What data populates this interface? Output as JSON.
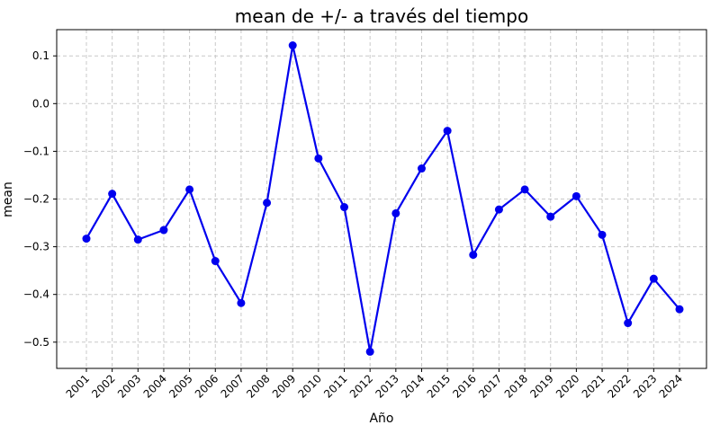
{
  "chart_data": {
    "type": "line",
    "title": "mean de +/- a través del tiempo",
    "xlabel": "Año",
    "ylabel": "mean",
    "categories": [
      "2001",
      "2002",
      "2003",
      "2004",
      "2005",
      "2006",
      "2007",
      "2008",
      "2009",
      "2010",
      "2011",
      "2012",
      "2013",
      "2014",
      "2015",
      "2016",
      "2017",
      "2018",
      "2019",
      "2020",
      "2021",
      "2022",
      "2023",
      "2024"
    ],
    "series": [
      {
        "values": [
          -0.283,
          -0.189,
          -0.285,
          -0.265,
          -0.18,
          -0.33,
          -0.418,
          -0.208,
          0.122,
          -0.115,
          -0.217,
          -0.52,
          -0.23,
          -0.136,
          -0.057,
          -0.317,
          -0.222,
          -0.18,
          -0.237,
          -0.194,
          -0.275,
          -0.46,
          -0.367,
          -0.431
        ],
        "color": "#0000ee"
      }
    ],
    "ylim": [
      -0.555,
      0.155
    ],
    "yticks": [
      0.1,
      0.0,
      -0.1,
      -0.2,
      -0.3,
      -0.4,
      -0.5
    ],
    "ytick_labels": [
      "0.1",
      "0.0",
      "−0.1",
      "−0.2",
      "−0.3",
      "−0.4",
      "−0.5"
    ],
    "grid": true,
    "line_style": "solid",
    "marker": "circle"
  }
}
